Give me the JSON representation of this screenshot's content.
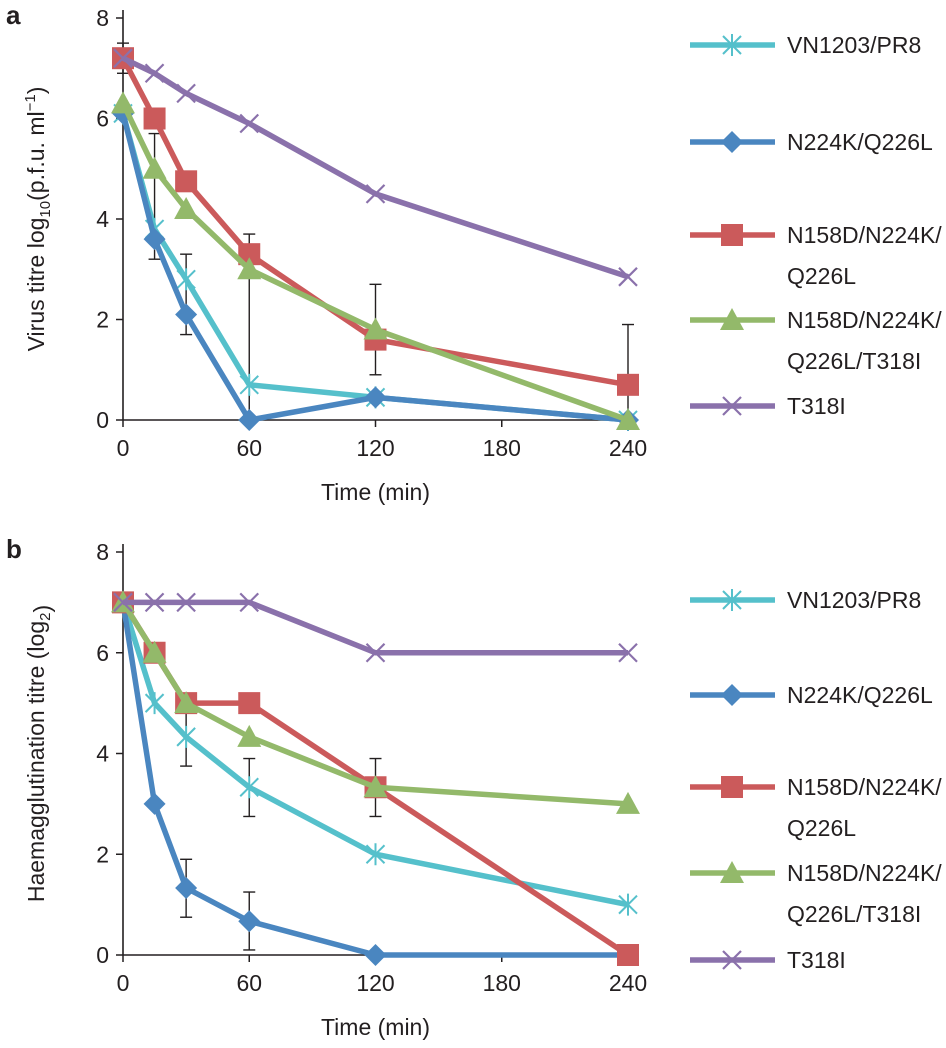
{
  "chart_data": [
    {
      "panel_label": "a",
      "type": "line",
      "xlabel": "Time (min)",
      "ylabel": {
        "main": "Virus titre log",
        "sub": "10",
        "unit": "(p.f.u. ml",
        "sup": "−1",
        "close": ")"
      },
      "x_ticks": [
        "0",
        "60",
        "120",
        "180",
        "240"
      ],
      "y_ticks": [
        "0",
        "2",
        "4",
        "6",
        "8"
      ],
      "ylim": [
        0,
        8
      ],
      "x": [
        0,
        15,
        30,
        60,
        120,
        240
      ],
      "legend_position": "right",
      "grid": false,
      "series": [
        {
          "name": "VN1203/PR8",
          "color": "#55c0cb",
          "marker": "asterisk",
          "values": [
            6.1,
            3.8,
            2.8,
            0.7,
            0.45,
            0
          ]
        },
        {
          "name": "N224K/Q226L",
          "color": "#4a86c0",
          "marker": "diamond",
          "values": [
            6.1,
            3.6,
            2.1,
            0,
            0.45,
            0
          ]
        },
        {
          "name": "N158D/N224K/Q226L",
          "legend_lines": [
            "N158D/N224K/",
            "Q226L"
          ],
          "color": "#cb5a5b",
          "marker": "square",
          "values": [
            7.2,
            6.0,
            4.75,
            3.3,
            1.6,
            0.7
          ]
        },
        {
          "name": "N158D/N224K/Q226L/T318I",
          "legend_lines": [
            "N158D/N224K/",
            "Q226L/T318I"
          ],
          "color": "#93b96a",
          "marker": "triangle",
          "values": [
            6.3,
            5.0,
            4.2,
            3.0,
            1.8,
            0
          ]
        },
        {
          "name": "T318I",
          "color": "#8a71ab",
          "marker": "cross",
          "values": [
            7.2,
            6.9,
            6.5,
            5.9,
            4.5,
            2.85
          ]
        }
      ],
      "error_bars": [
        {
          "x": 0,
          "low": 6.9,
          "high": 7.5
        },
        {
          "x": 15,
          "low": 3.2,
          "high": 5.7
        },
        {
          "x": 30,
          "low": 1.7,
          "high": 3.3
        },
        {
          "x": 60,
          "low": 0,
          "high": 3.7
        },
        {
          "x": 120,
          "low": 0.9,
          "high": 2.7
        },
        {
          "x": 240,
          "low": 0,
          "high": 1.9
        }
      ]
    },
    {
      "panel_label": "b",
      "type": "line",
      "xlabel": "Time (min)",
      "ylabel": {
        "main": "Haemagglutination titre (log",
        "sub": "2",
        "close": ")"
      },
      "x_ticks": [
        "0",
        "60",
        "120",
        "180",
        "240"
      ],
      "y_ticks": [
        "0",
        "2",
        "4",
        "6",
        "8"
      ],
      "ylim": [
        0,
        8
      ],
      "x": [
        0,
        15,
        30,
        60,
        120,
        240
      ],
      "legend_position": "right",
      "grid": false,
      "series": [
        {
          "name": "VN1203/PR8",
          "color": "#55c0cb",
          "marker": "asterisk",
          "values": [
            7,
            5,
            4.33,
            3.33,
            2,
            1
          ]
        },
        {
          "name": "N224K/Q226L",
          "color": "#4a86c0",
          "marker": "diamond",
          "values": [
            7,
            3,
            1.33,
            0.67,
            0,
            0
          ]
        },
        {
          "name": "N158D/N224K/Q226L",
          "legend_lines": [
            "N158D/N224K/",
            "Q226L"
          ],
          "color": "#cb5a5b",
          "marker": "square",
          "values": [
            7,
            6,
            5,
            5,
            3.33,
            0
          ]
        },
        {
          "name": "N158D/N224K/Q226L/T318I",
          "legend_lines": [
            "N158D/N224K/",
            "Q226L/T318I"
          ],
          "color": "#93b96a",
          "marker": "triangle",
          "values": [
            7,
            6,
            5,
            4.33,
            3.33,
            3
          ]
        },
        {
          "name": "T318I",
          "color": "#8a71ab",
          "marker": "cross",
          "values": [
            7,
            7,
            7,
            7,
            6,
            6
          ]
        }
      ],
      "error_bars": [
        {
          "x": 30,
          "low": 0.75,
          "high": 1.9
        },
        {
          "x": 60,
          "low": 0.1,
          "high": 1.25
        },
        {
          "x": 30,
          "low": 3.75,
          "high": 4.9
        },
        {
          "x": 60,
          "low": 2.75,
          "high": 3.9
        },
        {
          "x": 120,
          "low": 2.75,
          "high": 3.9
        }
      ]
    }
  ]
}
